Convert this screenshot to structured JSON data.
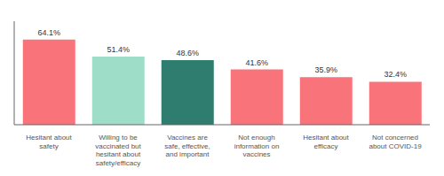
{
  "chart_data": {
    "type": "bar",
    "categories": [
      "Hesitant about\nsafety",
      "Willing to be\nvaccinated but\nhesitant about\nsafety/efficacy",
      "Vaccines are\nsafe, effective,\nand important",
      "Not enough\ninformation on\nvaccines",
      "Hesitant about\nefficacy",
      "Not concerned\nabout COVID-19"
    ],
    "values": [
      64.1,
      51.4,
      48.6,
      41.6,
      35.9,
      32.4
    ],
    "value_labels": [
      "64.1%",
      "51.4%",
      "48.6%",
      "41.6%",
      "35.9%",
      "32.4%"
    ],
    "data_labels": true,
    "colors": [
      "#F8737A",
      "#9EDEC8",
      "#2E7D6E",
      "#F8737A",
      "#F8737A",
      "#F8737A"
    ],
    "ylim": [
      0,
      78
    ],
    "grid": false,
    "tick_labels": "x"
  }
}
